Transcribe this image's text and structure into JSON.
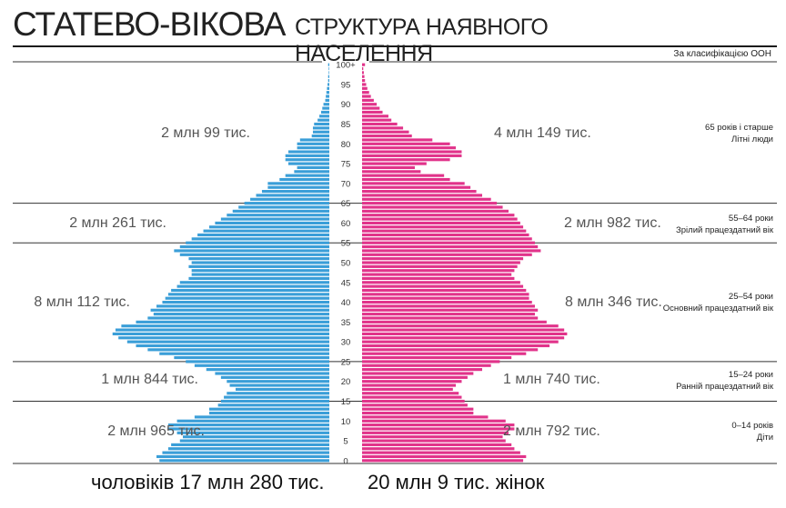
{
  "header": {
    "title_main": "СТАТЕВО-ВІКОВА",
    "title_sub": "СТРУКТУРА НАЯВНОГО НАСЕЛЕННЯ",
    "classification": "За класифікацією ООН"
  },
  "totals": {
    "men": "чоловіків 17 млн 280 тис.",
    "women": "20 млн 9 тис. жінок"
  },
  "colors": {
    "men": "#3a9ed8",
    "women": "#e1338a"
  },
  "chart_data": {
    "type": "bar",
    "orientation": "horizontal-pyramid",
    "age_ticks": [
      "0",
      "5",
      "10",
      "15",
      "20",
      "25",
      "30",
      "35",
      "40",
      "45",
      "50",
      "55",
      "60",
      "65",
      "70",
      "75",
      "80",
      "85",
      "90",
      "95",
      "100+"
    ],
    "age_groups": [
      {
        "label_line1": "65 років і старше",
        "label_line2": "Літні люди",
        "men": "2 млн 99 тис.",
        "women": "4 млн 149 тис."
      },
      {
        "label_line1": "55–64 роки",
        "label_line2": "Зрілий працездатний вік",
        "men": "2 млн 261 тис.",
        "women": "2 млн 982 тис."
      },
      {
        "label_line1": "25–54 роки",
        "label_line2": "Основний працездатний вік",
        "men": "8 млн 112 тис.",
        "women": "8 млн 346 тис."
      },
      {
        "label_line1": "15–24 роки",
        "label_line2": "Ранній працездатний вік",
        "men": "1 млн 844 тис.",
        "women": "1 млн 740 тис."
      },
      {
        "label_line1": "0–14 років",
        "label_line2": "Діти",
        "men": "2 млн 965 тис.",
        "women": "2 млн 792 тис."
      }
    ],
    "series": [
      {
        "name": "чоловіків",
        "values": [
          2.9,
          2.95,
          2.85,
          2.75,
          2.7,
          2.55,
          2.5,
          2.6,
          2.75,
          2.75,
          2.6,
          2.3,
          2.05,
          2.05,
          1.9,
          1.85,
          1.8,
          1.75,
          1.6,
          1.7,
          1.75,
          1.85,
          1.95,
          2.1,
          2.3,
          2.45,
          2.65,
          2.9,
          3.1,
          3.3,
          3.45,
          3.6,
          3.7,
          3.65,
          3.55,
          3.3,
          3.1,
          3.0,
          3.05,
          2.95,
          2.85,
          2.8,
          2.75,
          2.7,
          2.6,
          2.55,
          2.4,
          2.35,
          2.35,
          2.4,
          2.35,
          2.4,
          2.55,
          2.65,
          2.55,
          2.45,
          2.35,
          2.25,
          2.15,
          2.05,
          1.95,
          1.85,
          1.75,
          1.65,
          1.55,
          1.45,
          1.35,
          1.25,
          1.15,
          1.05,
          1.05,
          0.85,
          0.75,
          0.6,
          0.55,
          0.7,
          0.75,
          0.75,
          0.7,
          0.55,
          0.55,
          0.5,
          0.3,
          0.28,
          0.28,
          0.26,
          0.2,
          0.17,
          0.14,
          0.12,
          0.1,
          0.07,
          0.06,
          0.05,
          0.04,
          0.03,
          0.02,
          0.02,
          0.01,
          0.01,
          0.02
        ]
      },
      {
        "name": "жінок",
        "values": [
          2.75,
          2.8,
          2.7,
          2.6,
          2.55,
          2.45,
          2.4,
          2.5,
          2.6,
          2.6,
          2.45,
          2.15,
          1.9,
          1.9,
          1.8,
          1.75,
          1.7,
          1.65,
          1.55,
          1.6,
          1.7,
          1.8,
          1.9,
          2.05,
          2.2,
          2.35,
          2.55,
          2.8,
          3.0,
          3.2,
          3.35,
          3.45,
          3.5,
          3.45,
          3.35,
          3.15,
          3.0,
          2.95,
          3.0,
          2.95,
          2.9,
          2.85,
          2.85,
          2.8,
          2.75,
          2.7,
          2.6,
          2.55,
          2.6,
          2.65,
          2.7,
          2.75,
          2.9,
          3.05,
          3.0,
          2.95,
          2.9,
          2.85,
          2.8,
          2.75,
          2.7,
          2.65,
          2.6,
          2.5,
          2.4,
          2.3,
          2.2,
          2.05,
          1.95,
          1.85,
          1.75,
          1.5,
          1.4,
          1.0,
          0.9,
          1.1,
          1.5,
          1.7,
          1.7,
          1.6,
          1.5,
          1.2,
          0.85,
          0.8,
          0.7,
          0.6,
          0.5,
          0.45,
          0.35,
          0.3,
          0.25,
          0.2,
          0.15,
          0.12,
          0.09,
          0.07,
          0.05,
          0.04,
          0.03,
          0.02,
          0.05
        ]
      }
    ],
    "xlim": [
      0,
      4.0
    ],
    "ylim": [
      0,
      100
    ]
  }
}
